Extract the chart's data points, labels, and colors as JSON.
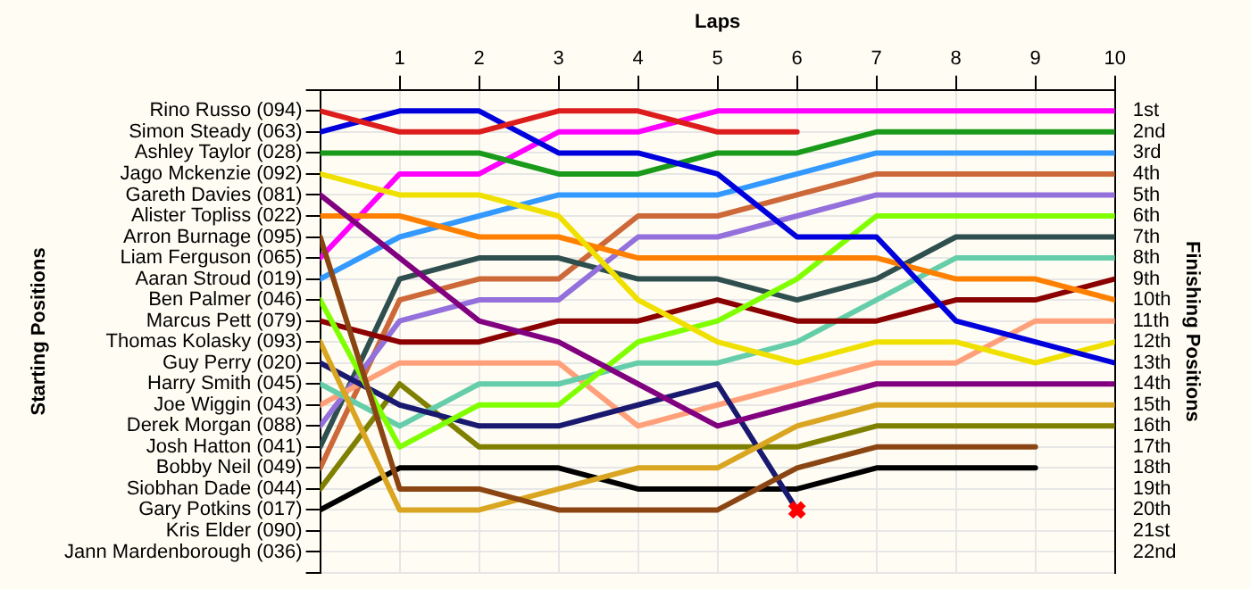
{
  "chart_data": {
    "type": "line",
    "xlabel": "Laps",
    "annotations": [
      "Starting Positions"
    ],
    "y2label": "Finishing Positions",
    "xlim": [
      0,
      10
    ],
    "xticks": [
      1,
      2,
      3,
      4,
      5,
      6,
      7,
      8,
      9,
      10
    ],
    "y_categories": [
      "Rino Russo (094)",
      "Simon Steady (063)",
      "Ashley Taylor (028)",
      "Jago Mckenzie (092)",
      "Gareth Davies (081)",
      "Alister Topliss (022)",
      "Arron Burnage (095)",
      "Liam Ferguson (065)",
      "Aaran Stroud (019)",
      "Ben Palmer (046)",
      "Marcus Pett (079)",
      "Thomas Kolasky (093)",
      "Guy Perry (020)",
      "Harry Smith (045)",
      "Joe Wiggin (043)",
      "Derek Morgan (088)",
      "Josh Hatton (041)",
      "Bobby Neil (049)",
      "Siobhan Dade (044)",
      "Gary Potkins (017)",
      "Kris Elder (090)",
      "Jann Mardenborough (036)"
    ],
    "y2lim": [
      23,
      0
    ],
    "y2ticks": [
      {
        "value": 1,
        "label": "1st"
      },
      {
        "value": 2,
        "label": "2nd"
      },
      {
        "value": 3,
        "label": "3rd"
      },
      {
        "value": 4,
        "label": "4th"
      },
      {
        "value": 5,
        "label": "5th"
      },
      {
        "value": 6,
        "label": "6th"
      },
      {
        "value": 7,
        "label": "7th"
      },
      {
        "value": 8,
        "label": "8th"
      },
      {
        "value": 9,
        "label": "9th"
      },
      {
        "value": 10,
        "label": "10th"
      },
      {
        "value": 11,
        "label": "11th"
      },
      {
        "value": 12,
        "label": "12th"
      },
      {
        "value": 13,
        "label": "13th"
      },
      {
        "value": 14,
        "label": "14th"
      },
      {
        "value": 15,
        "label": "15th"
      },
      {
        "value": 16,
        "label": "16th"
      },
      {
        "value": 17,
        "label": "17th"
      },
      {
        "value": 18,
        "label": "18th"
      },
      {
        "value": 19,
        "label": "19th"
      },
      {
        "value": 20,
        "label": "20th"
      },
      {
        "value": 21,
        "label": "21st"
      },
      {
        "value": 22,
        "label": "22nd"
      }
    ],
    "grid": true,
    "marker": "none",
    "x": [
      0,
      1,
      2,
      3,
      4,
      5,
      6,
      7,
      8,
      9,
      10
    ],
    "series": [
      {
        "axis": "y2",
        "color": "#dd1c1c",
        "values": [
          1,
          2,
          2,
          1,
          1,
          2,
          2,
          null,
          null,
          null,
          null
        ]
      },
      {
        "axis": "y2",
        "color": "#0000dd",
        "values": [
          2,
          1,
          1,
          3,
          3,
          4,
          7,
          7,
          11,
          12,
          13
        ]
      },
      {
        "axis": "y2",
        "color": "#1a9a1a",
        "values": [
          3,
          3,
          3,
          4,
          4,
          3,
          3,
          2,
          2,
          2,
          2
        ]
      },
      {
        "axis": "y2",
        "color": "#f0e000",
        "values": [
          4,
          5,
          5,
          6,
          10,
          12,
          13,
          12,
          12,
          13,
          12
        ]
      },
      {
        "axis": "y2",
        "color": "#800080",
        "values": [
          5,
          8,
          11,
          12,
          14,
          16,
          15,
          14,
          14,
          14,
          14
        ]
      },
      {
        "axis": "y2",
        "color": "#ff8000",
        "values": [
          6,
          6,
          7,
          7,
          8,
          8,
          8,
          8,
          9,
          9,
          10
        ]
      },
      {
        "axis": "y2",
        "color": "#8b4513",
        "values": [
          7,
          19,
          19,
          20,
          20,
          20,
          18,
          17,
          17,
          17,
          null
        ]
      },
      {
        "axis": "y2",
        "color": "#ff00ff",
        "values": [
          8,
          4,
          4,
          2,
          2,
          1,
          1,
          1,
          1,
          1,
          1
        ]
      },
      {
        "axis": "y2",
        "color": "#3399ff",
        "values": [
          9,
          7,
          6,
          5,
          5,
          5,
          4,
          3,
          3,
          3,
          3
        ]
      },
      {
        "axis": "y2",
        "color": "#80ff00",
        "values": [
          10,
          17,
          15,
          15,
          12,
          11,
          9,
          6,
          6,
          6,
          6
        ]
      },
      {
        "axis": "y2",
        "color": "#8b0000",
        "values": [
          11,
          12,
          12,
          11,
          11,
          10,
          11,
          11,
          10,
          10,
          9
        ]
      },
      {
        "axis": "y2",
        "color": "#daa520",
        "values": [
          12,
          20,
          20,
          19,
          18,
          18,
          16,
          15,
          15,
          15,
          15
        ]
      },
      {
        "axis": "y2",
        "color": "#191970",
        "values": [
          13,
          15,
          16,
          16,
          15,
          14,
          20,
          null,
          null,
          null,
          null
        ]
      },
      {
        "axis": "y2",
        "color": "#66cdaa",
        "values": [
          14,
          16,
          14,
          14,
          13,
          13,
          12,
          10,
          8,
          8,
          8
        ]
      },
      {
        "axis": "y2",
        "color": "#ffa07a",
        "values": [
          15,
          13,
          13,
          13,
          16,
          15,
          14,
          13,
          13,
          11,
          11
        ]
      },
      {
        "axis": "y2",
        "color": "#9370db",
        "values": [
          16,
          11,
          10,
          10,
          7,
          7,
          6,
          5,
          5,
          5,
          5
        ]
      },
      {
        "axis": "y2",
        "color": "#2f4f4f",
        "values": [
          17,
          9,
          8,
          8,
          9,
          9,
          10,
          9,
          7,
          7,
          7
        ]
      },
      {
        "axis": "y2",
        "color": "#cd6839",
        "values": [
          18,
          10,
          9,
          9,
          6,
          6,
          5,
          4,
          4,
          4,
          4
        ]
      },
      {
        "axis": "y2",
        "color": "#808000",
        "values": [
          19,
          14,
          17,
          17,
          17,
          17,
          17,
          16,
          16,
          16,
          16
        ]
      },
      {
        "axis": "y2",
        "color": "#000000",
        "values": [
          20,
          18,
          18,
          18,
          19,
          19,
          19,
          18,
          18,
          18,
          null
        ]
      },
      {
        "axis": "y2",
        "type": "scatter",
        "color": "#ff0000",
        "marker": "cross",
        "x": [
          6
        ],
        "values": [
          20
        ]
      }
    ]
  }
}
